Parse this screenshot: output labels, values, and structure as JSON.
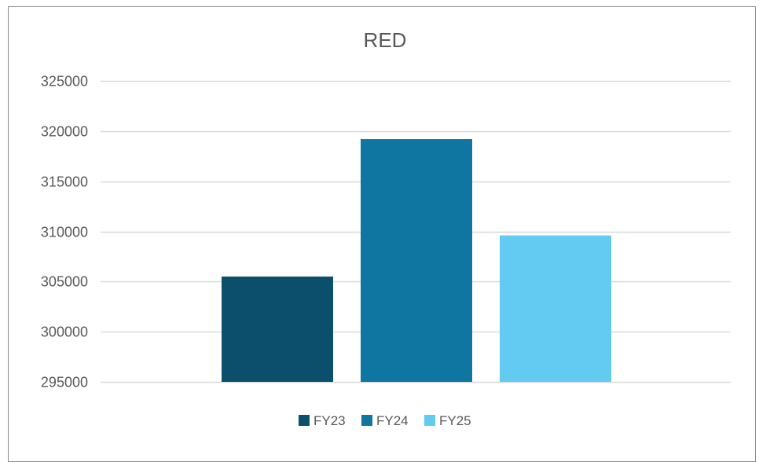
{
  "chart_data": {
    "type": "bar",
    "title": "RED",
    "xlabel": "",
    "ylabel": "",
    "ylim": [
      295000,
      325000
    ],
    "yticks": [
      295000,
      300000,
      305000,
      310000,
      315000,
      320000,
      325000
    ],
    "grid": true,
    "legend_position": "bottom",
    "series": [
      {
        "name": "FY23",
        "value": 305500,
        "color": "#0b4f6c"
      },
      {
        "name": "FY24",
        "value": 319200,
        "color": "#0e76a0"
      },
      {
        "name": "FY25",
        "value": 309600,
        "color": "#63caf2"
      }
    ]
  }
}
